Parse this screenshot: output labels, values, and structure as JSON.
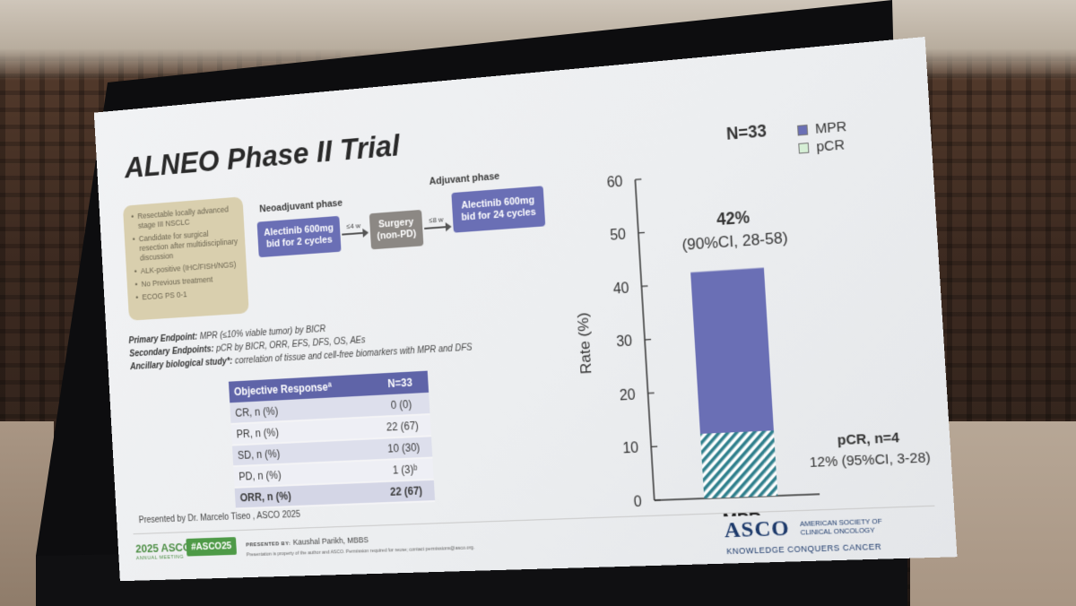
{
  "slide": {
    "title": "ALNEO Phase II Trial",
    "criteria": [
      "Resectable locally advanced stage III NSCLC",
      "Candidate for surgical resection after multidisciplinary discussion",
      "ALK-positive (IHC/FISH/NGS)",
      "No Previous treatment",
      "ECOG PS 0-1"
    ],
    "design": {
      "neoadjuvant_label": "Neoadjuvant phase",
      "adjuvant_label": "Adjuvant phase",
      "neoadjuvant_box": "Alectinib 600mg bid for 2 cycles",
      "surgery_box": "Surgery (non-PD)",
      "adjuvant_box": "Alectinib 600mg bid for 24 cycles",
      "arrow1_label": "≤4 w",
      "arrow2_label": "≤8 w"
    },
    "endpoints": {
      "primary_label": "Primary Endpoint:",
      "primary_text": "MPR (≤10% viable tumor) by BICR",
      "secondary_label": "Secondary Endpoints:",
      "secondary_text": "pCR by BICR, ORR, EFS, DFS, OS, AEs",
      "ancillary_label": "Ancillary biological study*:",
      "ancillary_text": "correlation of tissue and cell-free biomarkers with MPR and DFS"
    },
    "response_table": {
      "headers": [
        "Objective Responseª",
        "N=33"
      ],
      "rows": [
        [
          "CR, n (%)",
          "0 (0)"
        ],
        [
          "PR, n (%)",
          "22 (67)"
        ],
        [
          "SD, n (%)",
          "10 (30)"
        ],
        [
          "PD, n (%)",
          "1 (3)ᵇ"
        ],
        [
          "ORR, n (%)",
          "22 (67)"
        ]
      ]
    },
    "presented_by": "Presented by Dr. Marcelo Tiseo , ASCO 2025",
    "footer": {
      "meeting": "2025 ASCO",
      "meeting_sub": "ANNUAL MEETING",
      "hashtag": "#ASCO25",
      "presenter_prefix": "PRESENTED BY:",
      "presenter": "Kaushal Parikh, MBBS",
      "permission": "Presentation is property of the author and ASCO. Permission required for reuse; contact permissions@asco.org.",
      "logo": "ASCO",
      "society": "AMERICAN SOCIETY OF CLINICAL ONCOLOGY",
      "tagline": "KNOWLEDGE CONQUERS CANCER"
    }
  },
  "chart_data": {
    "type": "bar",
    "title": "N=33",
    "ylabel": "Rate (%)",
    "xlabel": "",
    "categories": [
      "MPR"
    ],
    "ylim": [
      0,
      60
    ],
    "yticks": [
      0,
      10,
      20,
      30,
      40,
      50,
      60
    ],
    "series": [
      {
        "name": "MPR",
        "values": [
          42
        ],
        "color": "#6a6fb5"
      },
      {
        "name": "pCR",
        "values": [
          12
        ],
        "color": "#b9e0b9"
      }
    ],
    "annotations": {
      "top_line1": "42%",
      "top_line2": "(90%CI, 28-58)",
      "pcr_line1": "pCR, n=4",
      "pcr_line2": "12% (95%CI, 3-28)"
    },
    "legend_position": "top-right",
    "grid": false
  }
}
